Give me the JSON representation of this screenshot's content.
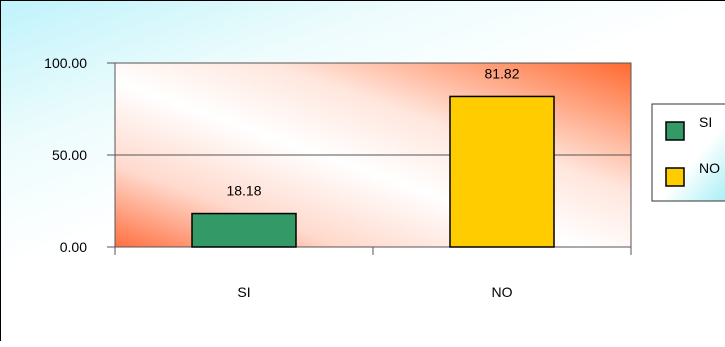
{
  "chart_data": {
    "type": "bar",
    "title": "",
    "xlabel": "",
    "ylabel": "",
    "categories": [
      "SI",
      "NO"
    ],
    "values": [
      18.18,
      81.82
    ],
    "value_labels": [
      "18.18",
      "81.82"
    ],
    "colors": [
      "#339966",
      "#ffcc00"
    ],
    "ylim": [
      0,
      100
    ],
    "yticks": [
      0,
      50,
      100
    ],
    "ytick_labels": [
      "0.00",
      "50.00",
      "100.00"
    ],
    "grid": true,
    "legend": {
      "position": "right",
      "entries": [
        {
          "label": "SI",
          "color": "#339966"
        },
        {
          "label": "NO",
          "color": "#ffcc00"
        }
      ]
    }
  }
}
